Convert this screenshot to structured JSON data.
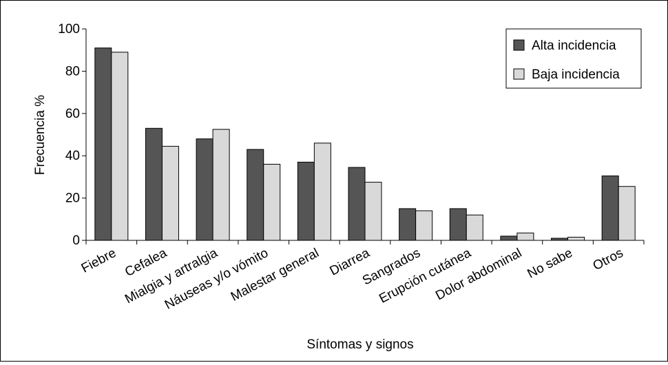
{
  "chart_data": {
    "type": "bar",
    "xlabel": "Síntomas y signos",
    "ylabel": "Frecuencia %",
    "ylim": [
      0,
      100
    ],
    "yticks": [
      "0",
      "20",
      "40",
      "60",
      "80",
      "100"
    ],
    "grid": false,
    "legend_position": "top-right",
    "categories": [
      "Fiebre",
      "Cefalea",
      "Mialgia y artralgia",
      "Náuseas y/o vómito",
      "Malestar general",
      "Diarrea",
      "Sangrados",
      "Erupción cutánea",
      "Dolor abdominal",
      "No sabe",
      "Otros"
    ],
    "series": [
      {
        "name": "Alta incidencia",
        "color": "#555555",
        "values": [
          91,
          53,
          48,
          43,
          37,
          34.5,
          15,
          15,
          2,
          1,
          30.5
        ]
      },
      {
        "name": "Baja incidencia",
        "color": "#d9d9d9",
        "values": [
          89,
          44.5,
          52.5,
          36,
          46,
          27.5,
          14,
          12,
          3.5,
          1.5,
          25.5
        ]
      }
    ]
  }
}
